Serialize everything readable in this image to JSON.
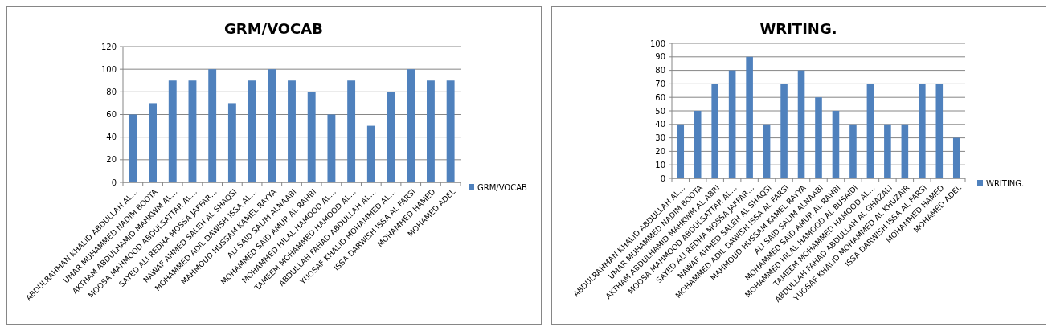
{
  "chart_data": [
    {
      "type": "bar",
      "title": "GRM/VOCAB",
      "categories": [
        "ABDULRAHMAN KHALID ABDULLAH AL…",
        "UMAR MUHAMMED NADIM  BOOTA",
        "AKTHAM ABDULHAMID MAHKWM AL…",
        "MOOSA MAHMOOD ABDULSATTAR AL…",
        "SAYED ALI REDHA MOSSA JAFFAR…",
        "NAWAF AHMED SALEH AL SHAQSI",
        "MOHAMMED ADIL DAWISH ISSA AL…",
        "MAHMOUD HUSSAM  KAMEL RAYYA",
        "ALI SAID SALIM ALNAABI",
        "MOHAMMED SAID AMUR AL RAHBI",
        "MOHAMMED HILAL HAMOOD AL…",
        "TAMEEM MOHAMMED  HAMOOD AL…",
        "ABDULLAH FAHAD ABDULLAH AL…",
        "YUOSAF KHALID MOHAMMED  AL…",
        "ISSA DARWISH ISSA AL FARSI",
        "MOHAMMED  HAMED",
        "MOHAMED ADEL"
      ],
      "series": [
        {
          "name": "GRM/VOCAB",
          "color": "#4f81bd",
          "values": [
            60,
            70,
            90,
            90,
            100,
            70,
            90,
            100,
            90,
            80,
            60,
            90,
            50,
            80,
            100,
            90,
            90
          ]
        }
      ],
      "ylim": [
        0,
        120
      ],
      "yticks": [
        0,
        20,
        40,
        60,
        80,
        100,
        120
      ],
      "grid": "y",
      "legend": "right"
    },
    {
      "type": "bar",
      "title": "WRITING.",
      "categories": [
        "ABDULRAHMAN KHALID ABDULLAH AL…",
        "UMAR MUHAMMED NADIM  BOOTA",
        "AKTHAM ABDULHAMID MAHKWM AL ABRI",
        "MOOSA MAHMOOD ABDULSATTAR AL…",
        "SAYED ALI REDHA MOSSA JAFFAR…",
        "NAWAF AHMED SALEH AL SHAQSI",
        "MOHAMMED ADIL DAWISH ISSA  AL FARSI",
        "MAHMOUD HUSSAM  KAMEL RAYYA",
        "ALI SAID SALIM ALNAABI",
        "MOHAMMED SAID AMUR AL RAHBI",
        "MOHAMMED HILAL HAMOOD AL BUSAIDI",
        "TAMEEM MOHAMMED  HAMOOD AL…",
        "ABDULLAH FAHAD ABDULLAH AL GHAZALI",
        "YUOSAF KHALID MOHAMMED  AL KHUZAIR",
        "ISSA DARWISH ISSA AL FARSI",
        "MOHAMMED  HAMED",
        "MOHAMED ADEL"
      ],
      "series": [
        {
          "name": "WRITING.",
          "color": "#4f81bd",
          "values": [
            40,
            50,
            70,
            80,
            90,
            40,
            70,
            80,
            60,
            50,
            40,
            70,
            40,
            40,
            70,
            70,
            30
          ]
        }
      ],
      "ylim": [
        0,
        100
      ],
      "yticks": [
        0,
        10,
        20,
        30,
        40,
        50,
        60,
        70,
        80,
        90,
        100
      ],
      "grid": "y",
      "legend": "right"
    }
  ]
}
